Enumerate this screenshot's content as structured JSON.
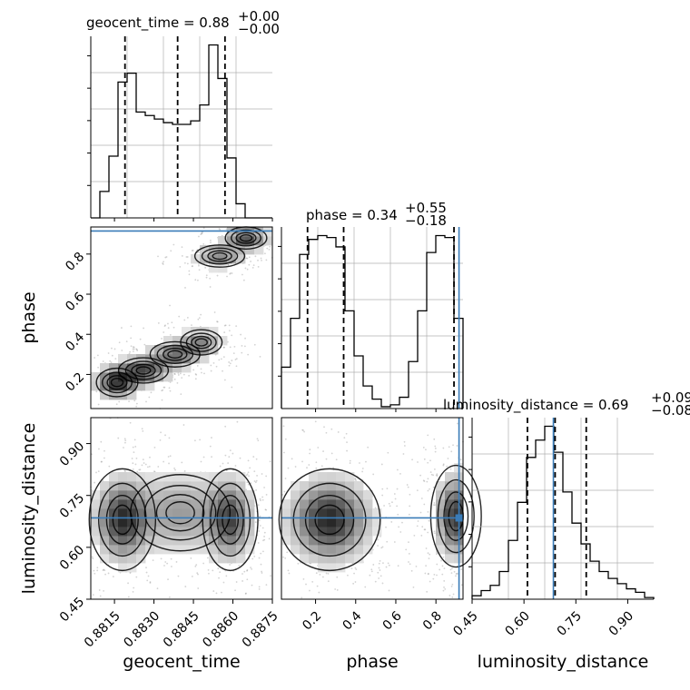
{
  "chart_data": {
    "type": "corner",
    "parameters": [
      "geocent_time",
      "phase",
      "luminosity_distance"
    ],
    "titles": [
      {
        "param": "geocent_time",
        "text": "geocent_time = 0.88",
        "sup": "+0.00",
        "sub": "−0.00"
      },
      {
        "param": "phase",
        "text": "phase = 0.34",
        "sup": "+0.55",
        "sub": "−0.18"
      },
      {
        "param": "luminosity_distance",
        "text": "luminosity_distance = 0.69",
        "sup": "+0.09",
        "sub": "−0.08"
      }
    ],
    "axis_labels": {
      "x": [
        "geocent_time",
        "phase",
        "luminosity_distance"
      ],
      "y": [
        "phase",
        "luminosity_distance"
      ]
    },
    "ranges": {
      "geocent_time": [
        0.8806,
        0.8875
      ],
      "phase": [
        0.03,
        0.935
      ],
      "luminosity_distance": [
        0.45,
        0.975
      ]
    },
    "ticks": {
      "geocent_time": [
        "0.8815",
        "0.8830",
        "0.8845",
        "0.8860",
        "0.8875"
      ],
      "phase": [
        "0.2",
        "0.4",
        "0.6",
        "0.8"
      ],
      "luminosity_distance": [
        "0.45",
        "0.60",
        "0.75",
        "0.90"
      ]
    },
    "truths": {
      "phase": 0.915,
      "luminosity_distance": 0.685
    },
    "quantiles": {
      "geocent_time": [
        0.8819,
        0.8839,
        0.8857
      ],
      "phase": [
        0.16,
        0.34,
        0.89
      ],
      "luminosity_distance": [
        0.61,
        0.69,
        0.78
      ]
    },
    "histograms": {
      "geocent_time": {
        "range": [
          0.8806,
          0.8875
        ],
        "counts": [
          0,
          0.15,
          0.35,
          0.77,
          0.82,
          0.6,
          0.58,
          0.56,
          0.54,
          0.53,
          0.53,
          0.55,
          0.64,
          0.98,
          0.79,
          0.34,
          0.08,
          0,
          0,
          0
        ]
      },
      "phase": {
        "range": [
          0.03,
          0.935
        ],
        "counts": [
          0.22,
          0.48,
          0.82,
          0.9,
          0.92,
          0.91,
          0.86,
          0.52,
          0.28,
          0.12,
          0.05,
          0.01,
          0.02,
          0.06,
          0.25,
          0.52,
          0.83,
          0.92,
          0.91,
          0.48
        ]
      },
      "luminosity_distance": {
        "range": [
          0.45,
          0.975
        ],
        "counts": [
          0.02,
          0.05,
          0.08,
          0.16,
          0.34,
          0.56,
          0.82,
          0.92,
          1.0,
          0.85,
          0.62,
          0.44,
          0.32,
          0.22,
          0.16,
          0.12,
          0.09,
          0.06,
          0.04,
          0.01
        ]
      }
    },
    "densities": {
      "geocent_time_vs_phase": {
        "modes": [
          {
            "x": 0.8816,
            "y": 0.16,
            "sx": 0.0005,
            "sy": 0.045,
            "w": 0.35
          },
          {
            "x": 0.8826,
            "y": 0.22,
            "sx": 0.0006,
            "sy": 0.04,
            "w": 0.3
          },
          {
            "x": 0.8838,
            "y": 0.3,
            "sx": 0.0006,
            "sy": 0.04,
            "w": 0.25
          },
          {
            "x": 0.8848,
            "y": 0.36,
            "sx": 0.0005,
            "sy": 0.04,
            "w": 0.2
          },
          {
            "x": 0.8855,
            "y": 0.79,
            "sx": 0.0006,
            "sy": 0.035,
            "w": 0.2
          },
          {
            "x": 0.8865,
            "y": 0.88,
            "sx": 0.0005,
            "sy": 0.035,
            "w": 0.3
          }
        ]
      },
      "geocent_time_vs_luminosity_distance": {
        "modes": [
          {
            "x": 0.8818,
            "y": 0.68,
            "sx": 0.0006,
            "sy": 0.07,
            "w": 0.9
          },
          {
            "x": 0.884,
            "y": 0.7,
            "sx": 0.0012,
            "sy": 0.07,
            "w": 0.45
          },
          {
            "x": 0.8859,
            "y": 0.68,
            "sx": 0.0005,
            "sy": 0.07,
            "w": 0.75
          }
        ]
      },
      "phase_vs_luminosity_distance": {
        "modes": [
          {
            "x": 0.27,
            "y": 0.68,
            "sx": 0.12,
            "sy": 0.07,
            "w": 1.0
          },
          {
            "x": 0.9,
            "y": 0.69,
            "sx": 0.06,
            "sy": 0.07,
            "w": 0.95
          }
        ]
      }
    }
  },
  "colors": {
    "truth": "#3a7cb8",
    "hist": "#000000",
    "grid": "#b0b0b0",
    "points": "#808080"
  }
}
